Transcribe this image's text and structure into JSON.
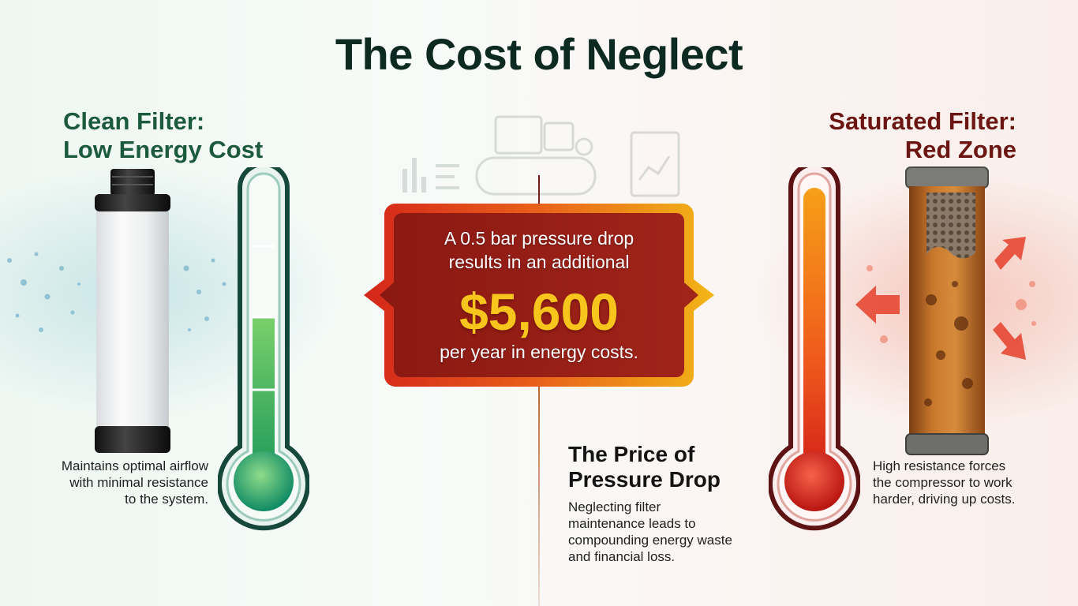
{
  "title": "The Cost of Neglect",
  "left": {
    "heading_line1": "Clean Filter:",
    "heading_line2": "Low Energy Cost",
    "caption_line1": "Maintains optimal airflow",
    "caption_line2": "with minimal resistance",
    "caption_line3": "to the system.",
    "thermometer_level": 0.55,
    "accent_color": "#1c5a3e",
    "icons": [
      "clean-filter-icon",
      "green-thermometer-icon"
    ]
  },
  "right": {
    "heading_line1": "Saturated Filter:",
    "heading_line2": "Red Zone",
    "caption_line1": "High resistance forces",
    "caption_line2": "the compressor to work",
    "caption_line3": "harder, driving up costs.",
    "thermometer_level": 0.95,
    "accent_color": "#6b1612",
    "icons": [
      "clogged-filter-icon",
      "red-thermometer-icon"
    ]
  },
  "callout": {
    "line1": "A 0.5 bar pressure drop",
    "line2": "results in an additional",
    "amount": "$5,600",
    "line3": "per year in energy costs.",
    "box_color": "#8a1912",
    "border_color": "#f2b617",
    "amount_color": "#f8c51c"
  },
  "price": {
    "heading_line1": "The Price of",
    "heading_line2": "Pressure Drop",
    "text_line1": "Neglecting filter",
    "text_line2": "maintenance leads to",
    "text_line3": "compounding energy waste",
    "text_line4": "and financial loss."
  }
}
